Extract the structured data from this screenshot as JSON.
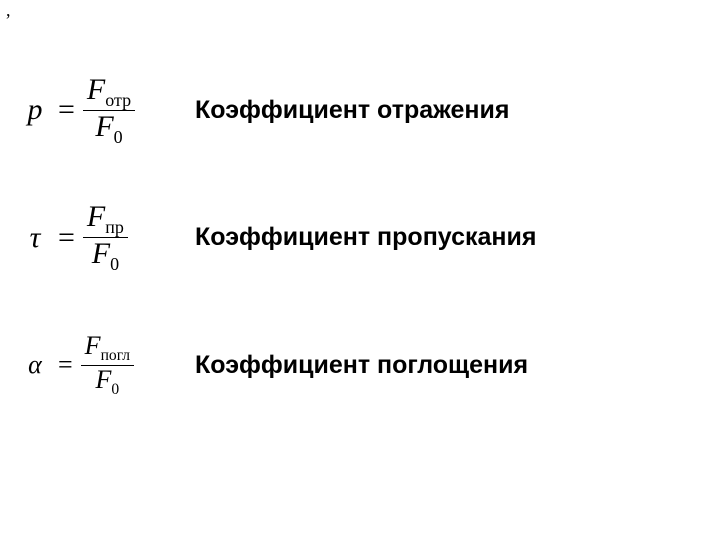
{
  "top_mark": ",",
  "rows": [
    {
      "lhs": "p",
      "eq": "=",
      "num_var": "F",
      "num_sub": "отр",
      "den_var": "F",
      "den_sub": "0",
      "label": "Коэффициент отражения"
    },
    {
      "lhs": "τ",
      "eq": "=",
      "num_var": "F",
      "num_sub": "пр",
      "den_var": "F",
      "den_sub": "0",
      "label": "Коэффициент пропускания"
    },
    {
      "lhs": "α",
      "eq": "=",
      "num_var": "F",
      "num_sub": "погл",
      "den_var": "F",
      "den_sub": "0",
      "label": "Коэффициент поглощения"
    }
  ],
  "style": {
    "background_color": "#ffffff",
    "text_color": "#000000",
    "formula_font": "Cambria Math / Times New Roman",
    "label_font": "Arial",
    "label_fontsize_pt": 19,
    "label_fontweight": "bold",
    "formula_fontsize_pt": 23
  }
}
